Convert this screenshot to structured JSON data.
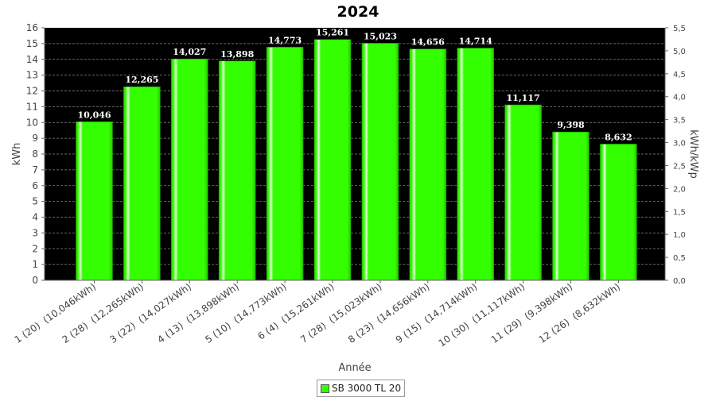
{
  "chart_data": {
    "type": "bar",
    "title": "2024",
    "xlabel": "Année",
    "ylabel": "kWh",
    "ylabel_right": "kWh/kWp",
    "ylim": [
      0,
      16
    ],
    "yticks": [
      "0",
      "1",
      "2",
      "3",
      "4",
      "5",
      "6",
      "7",
      "8",
      "9",
      "10",
      "11",
      "12",
      "13",
      "14",
      "15",
      "16"
    ],
    "ylim_right": [
      0,
      5.5
    ],
    "yticks_right": [
      "0,0",
      "0,5",
      "1,0",
      "1,5",
      "2,0",
      "2,5",
      "3,0",
      "3,5",
      "4,0",
      "4,5",
      "5,0",
      "5,5"
    ],
    "grid": true,
    "legend_position": "bottom",
    "categories": [
      "1 (20)  (10,046kWh)",
      "2 (28)  (12,265kWh)",
      "3 (22)  (14,027kWh)",
      "4 (13)  (13,898kWh)",
      "5 (10)  (14,773kWh)",
      "6 (4)  (15,261kWh)",
      "7 (28)  (15,023kWh)",
      "8 (23)  (14,656kWh)",
      "9 (15)  (14,714kWh)",
      "10 (30)  (11,117kWh)",
      "11 (29)  (9,398kWh)",
      "12 (26)  (8,632kWh)"
    ],
    "series": [
      {
        "name": "SB 3000 TL 20",
        "color": "#33ff00",
        "values": [
          10.046,
          12.265,
          14.027,
          13.898,
          14.773,
          15.261,
          15.023,
          14.656,
          14.714,
          11.117,
          9.398,
          8.632
        ],
        "labels": [
          "10,046",
          "12,265",
          "14,027",
          "13,898",
          "14,773",
          "15,261",
          "15,023",
          "14,656",
          "14,714",
          "11,117",
          "9,398",
          "8,632"
        ]
      }
    ],
    "plot_background": "#000000",
    "grid_color": "#888888"
  }
}
